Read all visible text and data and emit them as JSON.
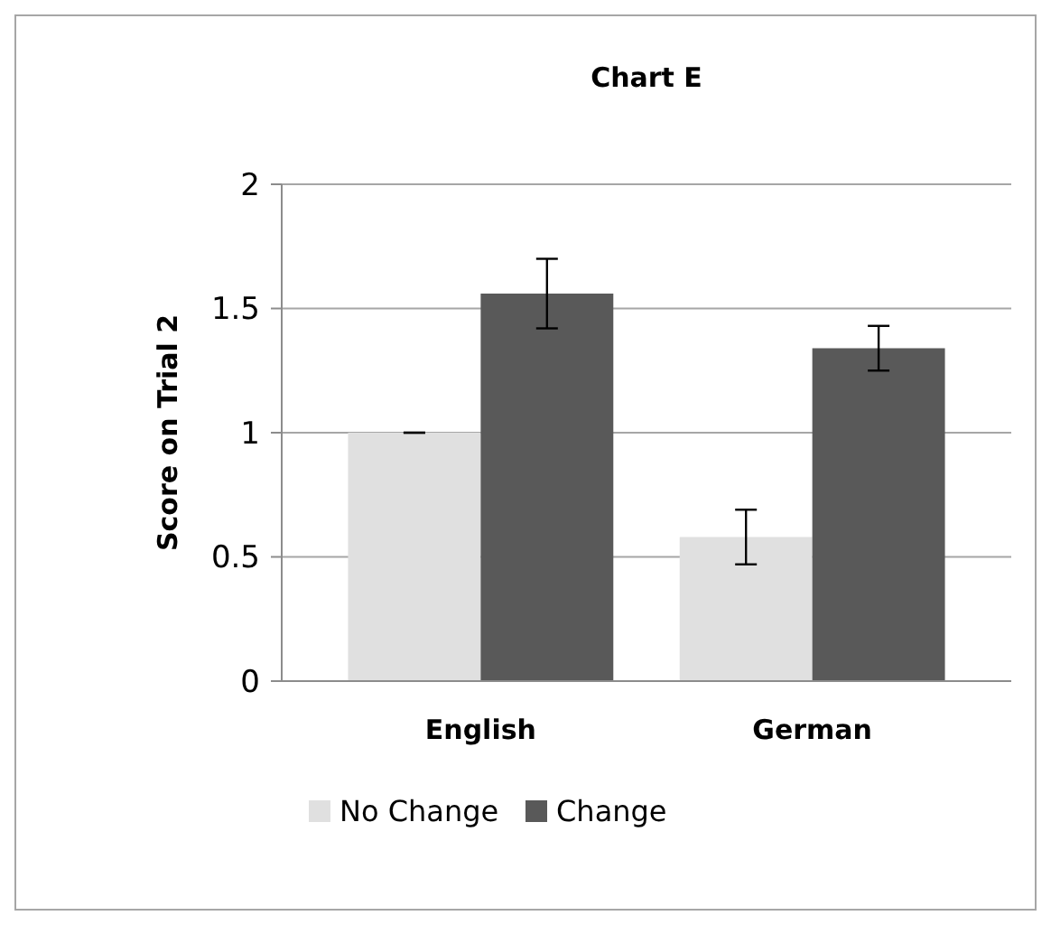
{
  "chart_data": {
    "type": "bar",
    "title": "Chart E",
    "ylabel": "Score on Trial 2",
    "categories": [
      "English",
      "German"
    ],
    "series": [
      {
        "name": "No Change",
        "color": "#e0e0e0",
        "values": [
          1.0,
          0.58
        ],
        "errors": [
          0,
          0.11
        ]
      },
      {
        "name": "Change",
        "color": "#595959",
        "values": [
          1.56,
          1.34
        ],
        "errors": [
          0.14,
          0.09
        ]
      }
    ],
    "ylim": [
      0,
      2
    ],
    "yticks": [
      0,
      0.5,
      1,
      1.5,
      2
    ],
    "grid": "y",
    "legend": "bottom"
  }
}
